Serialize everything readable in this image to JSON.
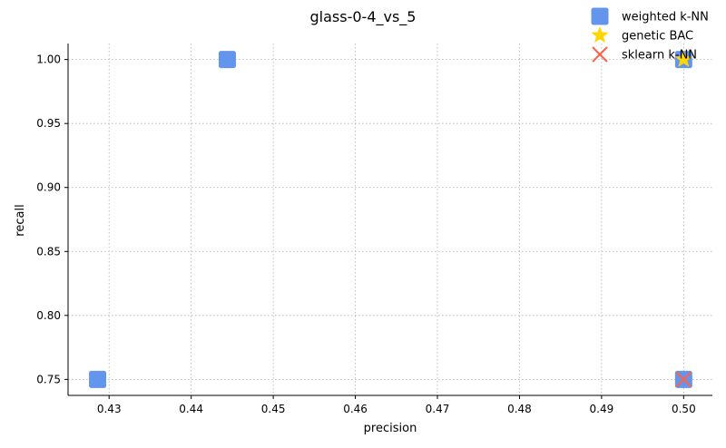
{
  "chart_data": {
    "type": "scatter",
    "title": "glass-0-4_vs_5",
    "xlabel": "precision",
    "ylabel": "recall",
    "xlim": [
      0.425,
      0.5035
    ],
    "ylim": [
      0.7375,
      1.0125
    ],
    "xticks": [
      0.43,
      0.44,
      0.45,
      0.46,
      0.47,
      0.48,
      0.49,
      0.5
    ],
    "xtick_labels": [
      "0.43",
      "0.44",
      "0.45",
      "0.46",
      "0.47",
      "0.48",
      "0.49",
      "0.50"
    ],
    "yticks": [
      0.75,
      0.8,
      0.85,
      0.9,
      0.95,
      1.0
    ],
    "ytick_labels": [
      "0.75",
      "0.80",
      "0.85",
      "0.90",
      "0.95",
      "1.00"
    ],
    "grid": true,
    "legend_position": "top-right",
    "series": [
      {
        "name": "weighted k-NN",
        "marker": "square",
        "color": "#6495ED",
        "points": [
          {
            "x": 0.4286,
            "y": 0.75
          },
          {
            "x": 0.4444,
            "y": 1.0
          },
          {
            "x": 0.5,
            "y": 1.0
          },
          {
            "x": 0.5,
            "y": 0.75
          }
        ]
      },
      {
        "name": "genetic BAC",
        "marker": "star",
        "color": "#FFD700",
        "points": [
          {
            "x": 0.5,
            "y": 1.0
          }
        ]
      },
      {
        "name": "sklearn k-NN",
        "marker": "x",
        "color": "#FF6347",
        "points": [
          {
            "x": 0.5,
            "y": 0.75
          }
        ]
      }
    ]
  }
}
